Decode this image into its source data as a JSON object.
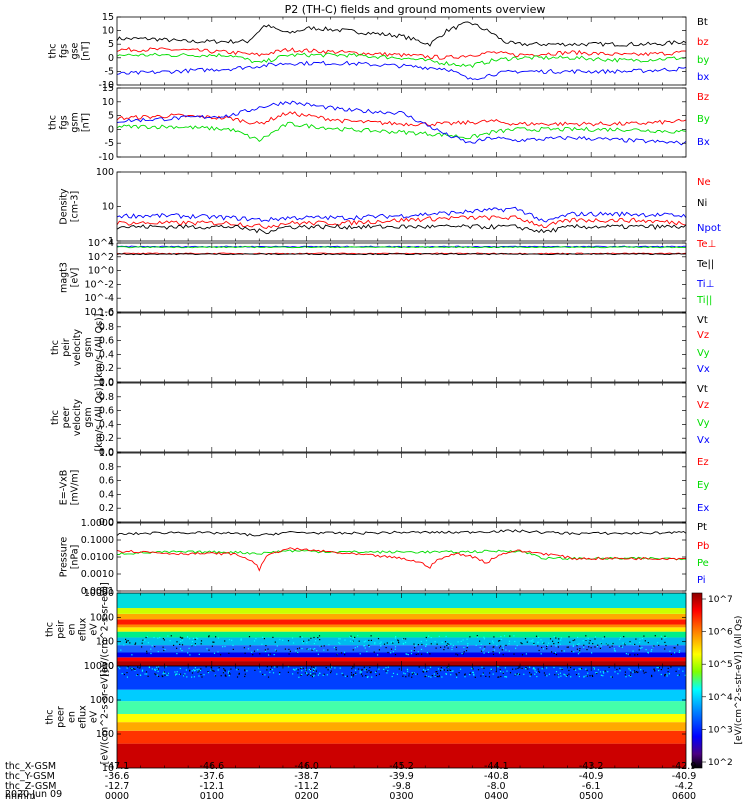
{
  "title": "P2 (TH-C) fields and ground moments overview",
  "colors": {
    "black": "#000000",
    "red": "#ff0000",
    "green": "#00dd00",
    "blue": "#0000ff"
  },
  "colorbar": {
    "label": "[eV/(cm^2-s-str-eV)] (All Qs)",
    "ticks": [
      "10^7",
      "10^6",
      "10^5",
      "10^4",
      "10^3",
      "10^2"
    ],
    "colors": [
      "#8b0000",
      "#ff0000",
      "#ff7f00",
      "#ffff00",
      "#7fff00",
      "#00ffff",
      "#0080ff",
      "#0000ff",
      "#4b0082",
      "#000000"
    ]
  },
  "chart_data": [
    {
      "type": "line",
      "id": "fgs-gse",
      "ylabel": [
        "thc",
        "fgs",
        "gse",
        "[nT]"
      ],
      "ylim": [
        -10,
        15
      ],
      "yticks": [
        "15",
        "10",
        "5",
        "0",
        "-5",
        "-10"
      ],
      "legend": [
        {
          "name": "Bt",
          "color": "#000000"
        },
        {
          "name": "bz",
          "color": "#ff0000"
        },
        {
          "name": "by",
          "color": "#00dd00"
        },
        {
          "name": "bx",
          "color": "#0000ff"
        }
      ],
      "series": [
        {
          "name": "Bt",
          "color": "#000000",
          "x": [
            0,
            0.06,
            0.12,
            0.18,
            0.23,
            0.26,
            0.3,
            0.34,
            0.4,
            0.45,
            0.5,
            0.55,
            0.58,
            0.62,
            0.66,
            0.68,
            0.7,
            0.75,
            0.8,
            0.85,
            0.9,
            0.95,
            1
          ],
          "values": [
            7,
            7,
            6,
            6,
            6,
            12,
            9,
            11,
            10,
            9,
            8,
            5,
            10,
            13,
            9,
            6,
            5,
            5,
            5,
            5,
            5,
            5,
            6
          ]
        },
        {
          "name": "bz",
          "color": "#ff0000",
          "x": [
            0,
            0.1,
            0.2,
            0.25,
            0.3,
            0.4,
            0.5,
            0.58,
            0.66,
            0.7,
            0.8,
            0.9,
            1
          ],
          "values": [
            3,
            3,
            2,
            1,
            3,
            2,
            1,
            0,
            2,
            1,
            2,
            1,
            2
          ]
        },
        {
          "name": "by",
          "color": "#00dd00",
          "x": [
            0,
            0.1,
            0.2,
            0.25,
            0.3,
            0.4,
            0.5,
            0.58,
            0.62,
            0.66,
            0.7,
            0.8,
            0.9,
            1
          ],
          "values": [
            1,
            1,
            1,
            -2,
            1,
            1,
            0,
            -2,
            -3,
            -1,
            0,
            0,
            -1,
            0
          ]
        },
        {
          "name": "bx",
          "color": "#0000ff",
          "x": [
            0,
            0.1,
            0.2,
            0.25,
            0.3,
            0.4,
            0.5,
            0.58,
            0.62,
            0.66,
            0.7,
            0.8,
            0.9,
            1
          ],
          "values": [
            -6,
            -5,
            -4,
            -3,
            -2,
            -2,
            -3,
            -4,
            -8,
            -6,
            -5,
            -5,
            -5,
            -4
          ]
        }
      ]
    },
    {
      "type": "line",
      "id": "fgs-gsm",
      "ylabel": [
        "thc",
        "fgs",
        "gsm",
        "[nT]"
      ],
      "ylim": [
        -10,
        15
      ],
      "yticks": [
        "15",
        "10",
        "5",
        "0",
        "-5",
        "-10"
      ],
      "legend": [
        {
          "name": "Bz",
          "color": "#ff0000"
        },
        {
          "name": "By",
          "color": "#00dd00"
        },
        {
          "name": "Bx",
          "color": "#0000ff"
        }
      ],
      "series": [
        {
          "name": "Bz",
          "color": "#ff0000",
          "x": [
            0,
            0.1,
            0.2,
            0.25,
            0.3,
            0.4,
            0.5,
            0.58,
            0.66,
            0.7,
            0.8,
            0.9,
            1
          ],
          "values": [
            4,
            5,
            4,
            2,
            6,
            3,
            2,
            2,
            3,
            2,
            2,
            2,
            3
          ]
        },
        {
          "name": "By",
          "color": "#00dd00",
          "x": [
            0,
            0.1,
            0.2,
            0.25,
            0.3,
            0.4,
            0.5,
            0.58,
            0.62,
            0.66,
            0.7,
            0.8,
            0.9,
            1
          ],
          "values": [
            1,
            1,
            0,
            -4,
            2,
            0,
            -1,
            -2,
            -3,
            -1,
            0,
            0,
            0,
            -1
          ]
        },
        {
          "name": "Bx",
          "color": "#0000ff",
          "x": [
            0,
            0.1,
            0.2,
            0.25,
            0.3,
            0.4,
            0.5,
            0.58,
            0.62,
            0.66,
            0.7,
            0.8,
            0.9,
            1
          ],
          "values": [
            3,
            4,
            5,
            8,
            10,
            7,
            6,
            -2,
            -5,
            -3,
            -4,
            -3,
            -4,
            -5
          ]
        }
      ]
    },
    {
      "type": "line",
      "id": "density",
      "ylog": true,
      "ylabel": [
        "Density",
        "[cm-3]"
      ],
      "ylim": [
        1,
        200
      ],
      "yticks": [
        "100",
        "10",
        "1"
      ],
      "legend": [
        {
          "name": "Ne",
          "color": "#ff0000"
        },
        {
          "name": "Ni",
          "color": "#000000"
        },
        {
          "name": "Npot",
          "color": "#0000ff"
        }
      ],
      "series": [
        {
          "name": "Npot",
          "color": "#0000ff",
          "x": [
            0,
            0.1,
            0.2,
            0.26,
            0.3,
            0.4,
            0.5,
            0.6,
            0.7,
            0.75,
            0.8,
            0.9,
            1
          ],
          "values": [
            7,
            7,
            6,
            5,
            6,
            6,
            7,
            9,
            12,
            4,
            8,
            8,
            7
          ]
        },
        {
          "name": "Ne",
          "color": "#ff0000",
          "x": [
            0,
            0.1,
            0.2,
            0.26,
            0.3,
            0.4,
            0.5,
            0.6,
            0.7,
            0.75,
            0.8,
            0.9,
            1
          ],
          "values": [
            4,
            4,
            4,
            3,
            4,
            4,
            5,
            6,
            6,
            3,
            5,
            5,
            4
          ]
        },
        {
          "name": "Ni",
          "color": "#000000",
          "x": [
            0,
            0.1,
            0.2,
            0.26,
            0.3,
            0.4,
            0.5,
            0.6,
            0.7,
            0.75,
            0.8,
            0.9,
            1
          ],
          "values": [
            3,
            3,
            3,
            2,
            3,
            3,
            3,
            3,
            3,
            2,
            3,
            3,
            3
          ]
        }
      ]
    },
    {
      "type": "line",
      "id": "temperature",
      "ylog": true,
      "ylabel": [
        "magt3",
        "[eV]"
      ],
      "ylim": [
        1e-06,
        10000
      ],
      "yticks": [
        "10^4",
        "10^2",
        "10^0",
        "10^-2",
        "10^-4",
        "10^-6"
      ],
      "legend": [
        {
          "name": "Te⊥",
          "color": "#ff0000"
        },
        {
          "name": "Te||",
          "color": "#000000"
        },
        {
          "name": "Ti⊥",
          "color": "#0000ff"
        },
        {
          "name": "Ti||",
          "color": "#00dd00"
        }
      ],
      "series": [
        {
          "name": "Ti⊥",
          "color": "#0000ff",
          "x": [
            0,
            0.5,
            1
          ],
          "values": [
            3000,
            3000,
            3000
          ]
        },
        {
          "name": "Ti||",
          "color": "#00dd00",
          "x": [
            0,
            0.5,
            1
          ],
          "values": [
            2500,
            2500,
            2500
          ]
        },
        {
          "name": "Te⊥",
          "color": "#ff0000",
          "x": [
            0,
            0.5,
            1
          ],
          "values": [
            300,
            300,
            300
          ]
        },
        {
          "name": "Te||",
          "color": "#000000",
          "x": [
            0,
            0.5,
            1
          ],
          "values": [
            250,
            250,
            250
          ]
        }
      ]
    },
    {
      "type": "line",
      "id": "peir-velocity",
      "ylabel": [
        "thc",
        "peir",
        "velocity",
        "gsm",
        "[km/s (All Qs)]"
      ],
      "ylim": [
        0,
        1
      ],
      "yticks": [
        "1.0",
        "0.8",
        "0.6",
        "0.4",
        "0.2",
        "0.0"
      ],
      "legend": [
        {
          "name": "Vt",
          "color": "#000000"
        },
        {
          "name": "Vz",
          "color": "#ff0000"
        },
        {
          "name": "Vy",
          "color": "#00dd00"
        },
        {
          "name": "Vx",
          "color": "#0000ff"
        }
      ],
      "series": []
    },
    {
      "type": "line",
      "id": "peer-velocity",
      "ylabel": [
        "thc",
        "peer",
        "velocity",
        "gsm",
        "[km/s (All Qs)]"
      ],
      "ylim": [
        0,
        1
      ],
      "yticks": [
        "1.0",
        "0.8",
        "0.6",
        "0.4",
        "0.2",
        "0.0"
      ],
      "legend": [
        {
          "name": "Vt",
          "color": "#000000"
        },
        {
          "name": "Vz",
          "color": "#ff0000"
        },
        {
          "name": "Vy",
          "color": "#00dd00"
        },
        {
          "name": "Vx",
          "color": "#0000ff"
        }
      ],
      "series": []
    },
    {
      "type": "line",
      "id": "efield",
      "ylabel": [
        "E=-VxB",
        "[mV/m]"
      ],
      "ylim": [
        0,
        1
      ],
      "yticks": [
        "1.0",
        "0.8",
        "0.6",
        "0.4",
        "0.2",
        "0.0"
      ],
      "legend": [
        {
          "name": "Ez",
          "color": "#ff0000"
        },
        {
          "name": "Ey",
          "color": "#00dd00"
        },
        {
          "name": "Ex",
          "color": "#0000ff"
        }
      ],
      "series": []
    },
    {
      "type": "line",
      "id": "pressure",
      "ylog": true,
      "ylabel": [
        "Pressure",
        "[nPa]"
      ],
      "ylim": [
        0.0001,
        1.5
      ],
      "yticks": [
        "1.0000",
        "0.1000",
        "0.0100",
        "0.0010",
        "0.0001"
      ],
      "legend": [
        {
          "name": "Pt",
          "color": "#000000"
        },
        {
          "name": "Pb",
          "color": "#ff0000"
        },
        {
          "name": "Pe",
          "color": "#00dd00"
        },
        {
          "name": "Pi",
          "color": "#0000ff"
        }
      ],
      "series": [
        {
          "name": "Pt",
          "color": "#000000",
          "x": [
            0,
            0.1,
            0.2,
            0.25,
            0.3,
            0.4,
            0.5,
            0.6,
            0.7,
            0.75,
            0.8,
            0.9,
            1
          ],
          "values": [
            0.3,
            0.4,
            0.35,
            0.25,
            0.4,
            0.35,
            0.4,
            0.4,
            0.5,
            0.4,
            0.35,
            0.35,
            0.4
          ]
        },
        {
          "name": "Pe",
          "color": "#00dd00",
          "x": [
            0,
            0.1,
            0.2,
            0.25,
            0.3,
            0.4,
            0.5,
            0.6,
            0.7,
            0.75,
            0.8,
            0.9,
            1
          ],
          "values": [
            0.02,
            0.025,
            0.025,
            0.02,
            0.03,
            0.025,
            0.025,
            0.025,
            0.03,
            0.01,
            0.01,
            0.01,
            0.01
          ]
        },
        {
          "name": "Pb",
          "color": "#ff0000",
          "x": [
            0,
            0.1,
            0.2,
            0.25,
            0.3,
            0.4,
            0.5,
            0.55,
            0.6,
            0.65,
            0.7,
            0.75,
            0.8,
            0.9,
            1
          ],
          "values": [
            0.03,
            0.02,
            0.02,
            0.002,
            0.04,
            0.02,
            0.01,
            0.003,
            0.02,
            0.005,
            0.03,
            0.02,
            0.01,
            0.01,
            0.01
          ]
        }
      ]
    },
    {
      "type": "heatmap",
      "id": "peir-eflux",
      "ylog": true,
      "ylabel": [
        "thc",
        "peir",
        "en",
        "eflux",
        "eV",
        "[eV/(cm^2-s-sr-eV)]"
      ],
      "ylim": [
        5,
        30000
      ],
      "yticks": [
        "10000",
        "1000",
        "100",
        "10"
      ]
    },
    {
      "type": "heatmap",
      "id": "peer-eflux",
      "ylog": true,
      "ylabel": [
        "thc",
        "peer",
        "en",
        "eflux",
        "eV",
        "[eV/(cm^2-s-sr-eV)]"
      ],
      "ylim": [
        5,
        30000
      ],
      "yticks": [
        "10000",
        "1000",
        "100",
        "10"
      ]
    }
  ],
  "xaxis": {
    "rows": [
      {
        "label": "thc_X-GSM",
        "values": [
          "-47.1",
          "-46.6",
          "-46.0",
          "-45.2",
          "-44.1",
          "-43.2",
          "-42.9"
        ]
      },
      {
        "label": "thc_Y-GSM",
        "values": [
          "-36.6",
          "-37.6",
          "-38.7",
          "-39.9",
          "-40.8",
          "-40.9",
          "-40.9"
        ]
      },
      {
        "label": "thc_Z-GSM",
        "values": [
          "-12.7",
          "-12.1",
          "-11.2",
          "-9.8",
          "-8.0",
          "-6.1",
          "-4.2"
        ]
      },
      {
        "label": "hhmm",
        "values": [
          "0000",
          "0100",
          "0200",
          "0300",
          "0400",
          "0500",
          "0600"
        ]
      }
    ],
    "date": "2020 Jun 09"
  }
}
